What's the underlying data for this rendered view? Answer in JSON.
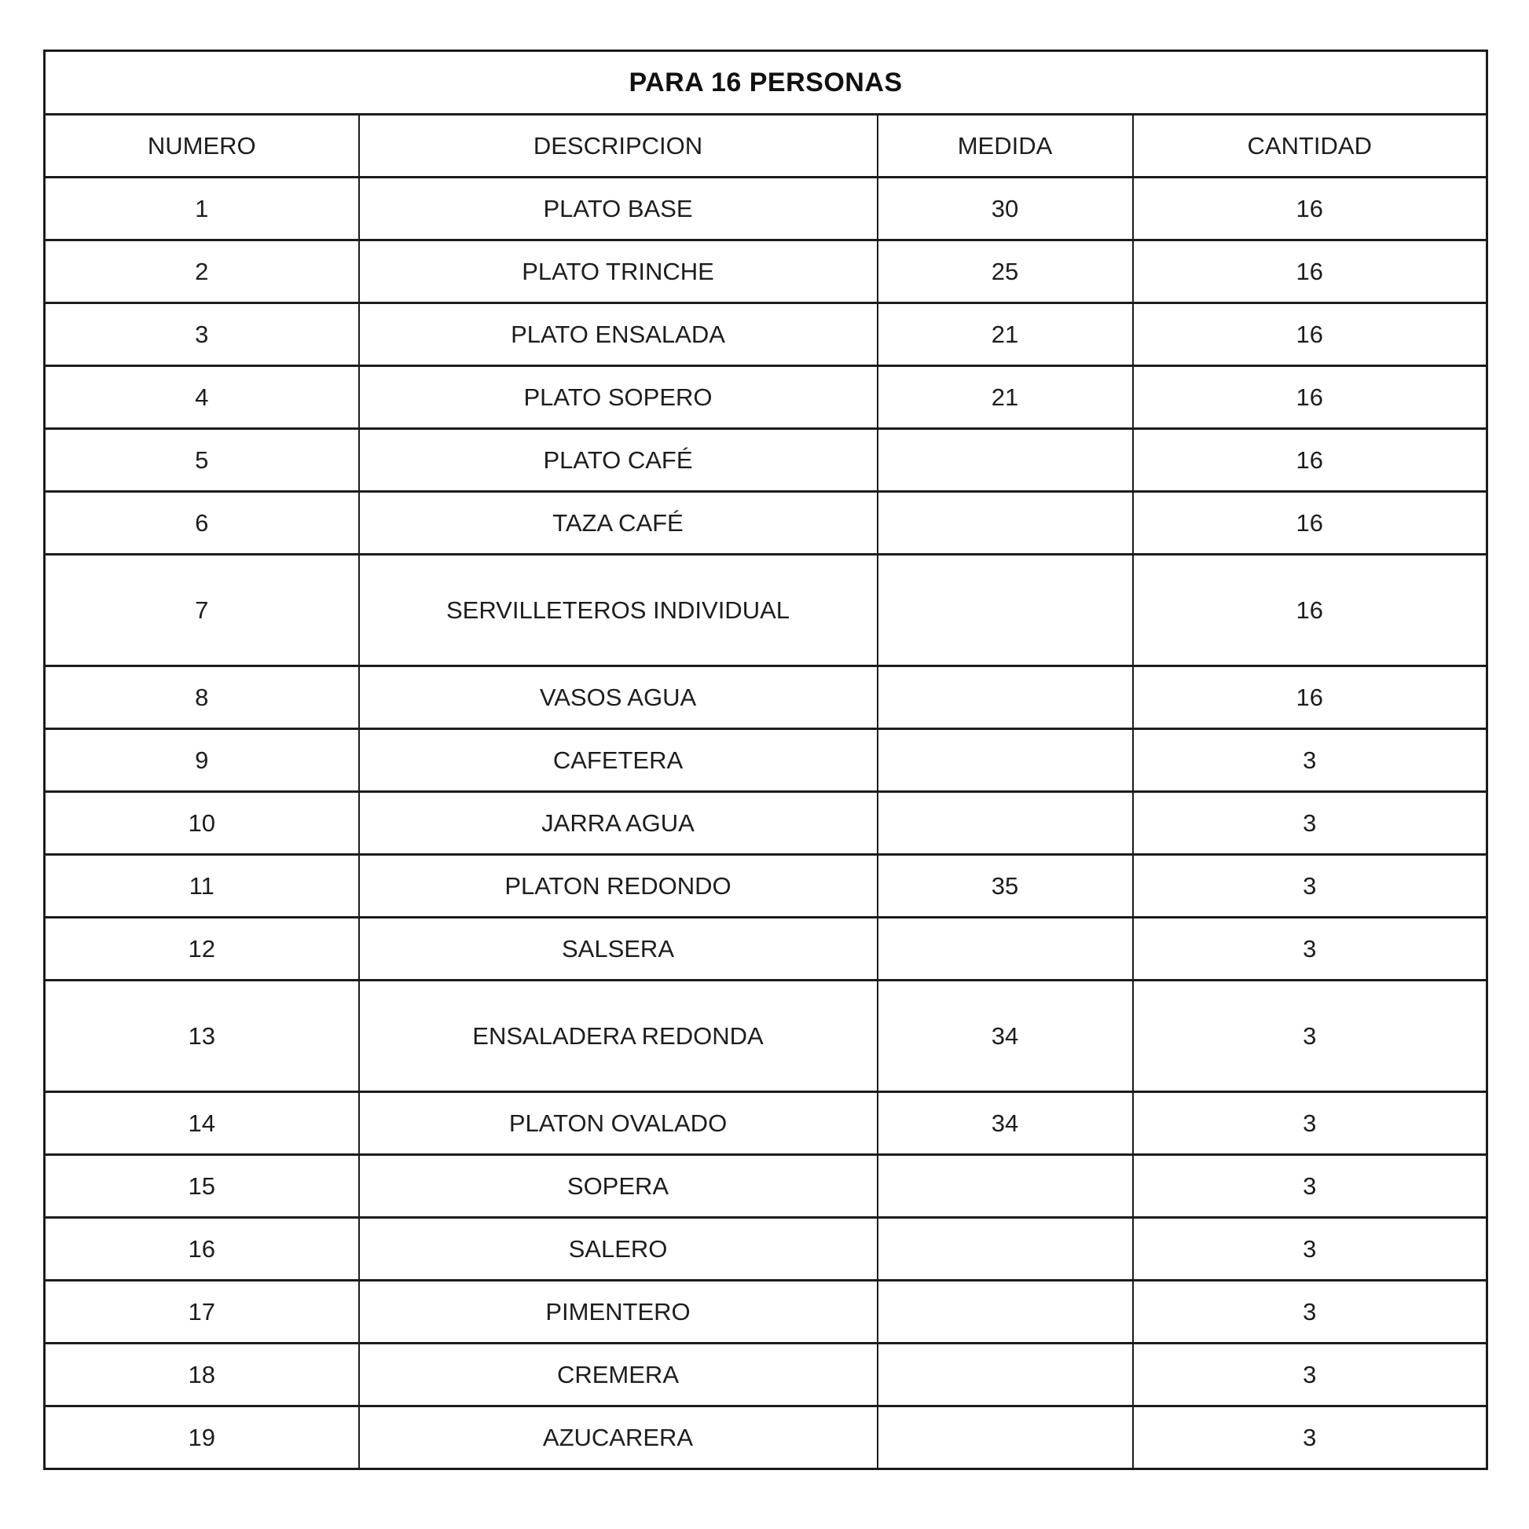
{
  "table": {
    "title": "PARA 16 PERSONAS",
    "columns": [
      "NUMERO",
      "DESCRIPCION",
      "MEDIDA",
      "CANTIDAD"
    ],
    "rows": [
      {
        "numero": "1",
        "descripcion": "PLATO BASE",
        "medida": "30",
        "cantidad": "16",
        "tall": false
      },
      {
        "numero": "2",
        "descripcion": "PLATO TRINCHE",
        "medida": "25",
        "cantidad": "16",
        "tall": false
      },
      {
        "numero": "3",
        "descripcion": "PLATO ENSALADA",
        "medida": "21",
        "cantidad": "16",
        "tall": false
      },
      {
        "numero": "4",
        "descripcion": "PLATO SOPERO",
        "medida": "21",
        "cantidad": "16",
        "tall": false
      },
      {
        "numero": "5",
        "descripcion": "PLATO CAFÉ",
        "medida": "",
        "cantidad": "16",
        "tall": false
      },
      {
        "numero": "6",
        "descripcion": "TAZA CAFÉ",
        "medida": "",
        "cantidad": "16",
        "tall": false
      },
      {
        "numero": "7",
        "descripcion": "SERVILLETEROS INDIVIDUAL",
        "medida": "",
        "cantidad": "16",
        "tall": true
      },
      {
        "numero": "8",
        "descripcion": "VASOS AGUA",
        "medida": "",
        "cantidad": "16",
        "tall": false
      },
      {
        "numero": "9",
        "descripcion": "CAFETERA",
        "medida": "",
        "cantidad": "3",
        "tall": false
      },
      {
        "numero": "10",
        "descripcion": "JARRA AGUA",
        "medida": "",
        "cantidad": "3",
        "tall": false
      },
      {
        "numero": "11",
        "descripcion": "PLATON REDONDO",
        "medida": "35",
        "cantidad": "3",
        "tall": false
      },
      {
        "numero": "12",
        "descripcion": "SALSERA",
        "medida": "",
        "cantidad": "3",
        "tall": false
      },
      {
        "numero": "13",
        "descripcion": "ENSALADERA REDONDA",
        "medida": "34",
        "cantidad": "3",
        "tall": true
      },
      {
        "numero": "14",
        "descripcion": "PLATON OVALADO",
        "medida": "34",
        "cantidad": "3",
        "tall": false
      },
      {
        "numero": "15",
        "descripcion": "SOPERA",
        "medida": "",
        "cantidad": "3",
        "tall": false
      },
      {
        "numero": "16",
        "descripcion": "SALERO",
        "medida": "",
        "cantidad": "3",
        "tall": false
      },
      {
        "numero": "17",
        "descripcion": "PIMENTERO",
        "medida": "",
        "cantidad": "3",
        "tall": false
      },
      {
        "numero": "18",
        "descripcion": "CREMERA",
        "medida": "",
        "cantidad": "3",
        "tall": false
      },
      {
        "numero": "19",
        "descripcion": "AZUCARERA",
        "medida": "",
        "cantidad": "3",
        "tall": false
      }
    ]
  }
}
